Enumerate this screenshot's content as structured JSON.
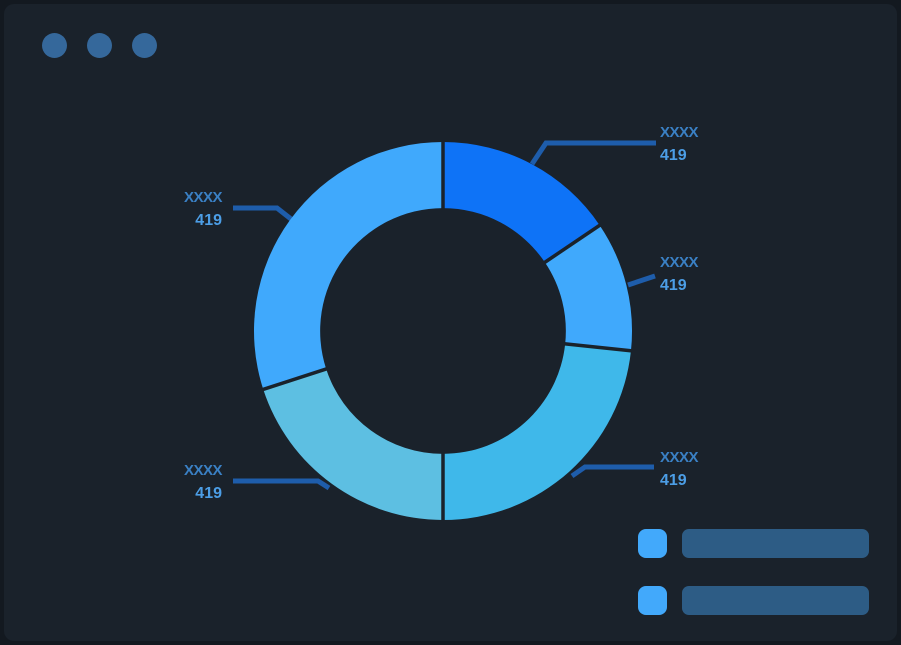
{
  "theme": {
    "page_bg": "#131920",
    "window_bg": "#1a222b",
    "dot_color": "#35689b",
    "callout_line": "#1e5dab",
    "label_name": "#3a80c4",
    "label_value": "#4c9ee6",
    "legend_swatch": "#42a9fb",
    "legend_bar": "#2d5c85"
  },
  "window_controls": {
    "count": 3
  },
  "chart_data": {
    "type": "donut",
    "title": "",
    "start_angle_deg": 0,
    "inner_radius_ratio": 0.65,
    "separator_color": "#1a222b",
    "segments": [
      {
        "label": "XXXX",
        "value": "419",
        "sweep_deg": 56,
        "color": "#0e73f7"
      },
      {
        "label": "XXXX",
        "value": "419",
        "sweep_deg": 40,
        "color": "#40a9fc"
      },
      {
        "label": "XXXX",
        "value": "419",
        "sweep_deg": 84,
        "color": "#3fb8ea"
      },
      {
        "label": "XXXX",
        "value": "419",
        "sweep_deg": 72,
        "color": "#5dbfe2"
      },
      {
        "label": "XXXX",
        "value": "419",
        "sweep_deg": 108,
        "color": "#40a9fc"
      }
    ],
    "legend_position": "bottom-right",
    "legend_items": [
      {
        "label_placeholder": ""
      },
      {
        "label_placeholder": ""
      }
    ]
  }
}
